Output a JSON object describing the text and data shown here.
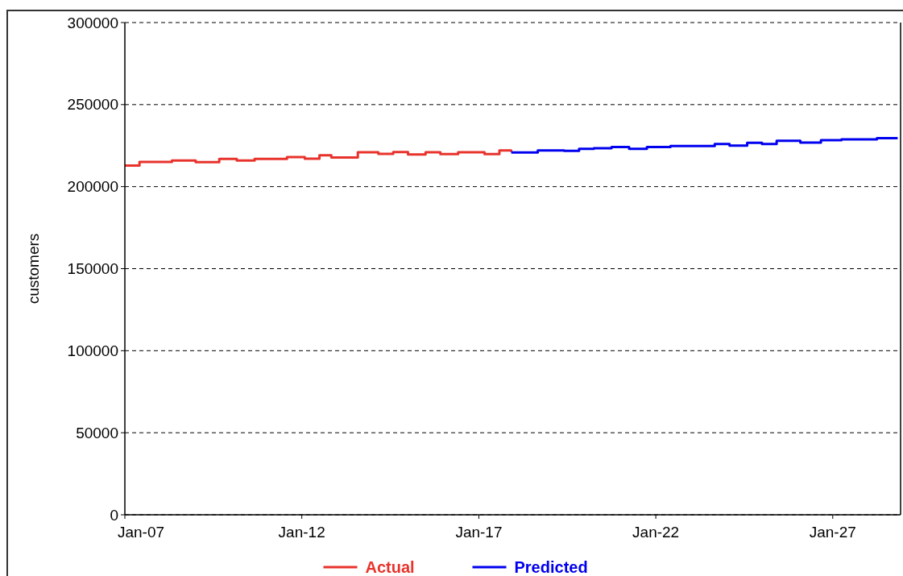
{
  "chart_data": {
    "type": "step",
    "ylabel": "customers",
    "xlim": [
      "2007-01",
      "2028-12"
    ],
    "xticks": [
      {
        "value": "2007-01",
        "label": "Jan-07"
      },
      {
        "value": "2012-01",
        "label": "Jan-12"
      },
      {
        "value": "2017-01",
        "label": "Jan-17"
      },
      {
        "value": "2022-01",
        "label": "Jan-22"
      },
      {
        "value": "2027-01",
        "label": "Jan-27"
      }
    ],
    "ylim": [
      0,
      300000
    ],
    "yticks": [
      0,
      50000,
      100000,
      150000,
      200000,
      250000,
      300000
    ],
    "grid": "y",
    "legend": "bottom",
    "line_style": "solid",
    "marker": "none",
    "series": [
      {
        "name": "Actual",
        "color": "#e8332c",
        "x": [
          "2007-01",
          "2007-06",
          "2008-05",
          "2009-01",
          "2009-09",
          "2010-03",
          "2010-09",
          "2011-08",
          "2012-02",
          "2012-07",
          "2012-11",
          "2013-08",
          "2014-03",
          "2014-08",
          "2015-01",
          "2015-07",
          "2015-12",
          "2016-06",
          "2017-03",
          "2017-08",
          "2017-12"
        ],
        "values": [
          212800,
          215000,
          215900,
          214900,
          216900,
          215900,
          216900,
          218000,
          217000,
          219100,
          217800,
          220900,
          220000,
          221100,
          219600,
          220900,
          219800,
          220900,
          219800,
          222100,
          221100
        ]
      },
      {
        "name": "Predicted",
        "color": "#0000ee",
        "x": [
          "2017-12",
          "2018-05",
          "2018-09",
          "2019-06",
          "2019-11",
          "2020-04",
          "2020-10",
          "2021-04",
          "2021-10",
          "2022-06",
          "2023-05",
          "2023-09",
          "2024-02",
          "2024-08",
          "2025-01",
          "2025-06",
          "2026-02",
          "2026-09",
          "2027-04",
          "2027-10",
          "2028-04",
          "2028-11"
        ],
        "values": [
          220800,
          220800,
          222100,
          221800,
          223000,
          223400,
          224200,
          223000,
          224200,
          224700,
          224700,
          226000,
          225000,
          226700,
          226000,
          228000,
          226800,
          228300,
          228800,
          228800,
          229600,
          229600
        ]
      }
    ]
  }
}
